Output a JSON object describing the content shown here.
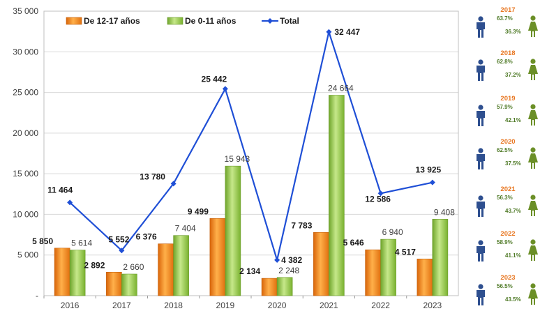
{
  "chart_data": {
    "type": "bar",
    "categories": [
      "2016",
      "2017",
      "2018",
      "2019",
      "2020",
      "2021",
      "2022",
      "2023"
    ],
    "series": [
      {
        "name": "De 12-17 años",
        "kind": "bar",
        "color": "#f28c1e",
        "values": [
          5850,
          2892,
          6376,
          9499,
          2134,
          7783,
          5646,
          4517
        ],
        "labels": [
          "5 850",
          "2 892",
          "6 376",
          "9 499",
          "2 134",
          "7 783",
          "5 646",
          "4 517"
        ]
      },
      {
        "name": "De 0-11 años",
        "kind": "bar",
        "color": "#8cc63f",
        "values": [
          5614,
          2660,
          7404,
          15943,
          2248,
          24664,
          6940,
          9408
        ],
        "labels": [
          "5 614",
          "2 660",
          "7 404",
          "15 943",
          "2 248",
          "24 664",
          "6 940",
          "9 408"
        ]
      },
      {
        "name": "Total",
        "kind": "line",
        "color": "#1f4fd6",
        "values": [
          11464,
          5552,
          13780,
          25442,
          4382,
          32447,
          12586,
          13925
        ],
        "labels": [
          "11 464",
          "5 552",
          "13 780",
          "25 442",
          "4 382",
          "32 447",
          "12 586",
          "13 925"
        ]
      }
    ],
    "ylim": [
      0,
      35000
    ],
    "yticks": [
      0,
      5000,
      10000,
      15000,
      20000,
      25000,
      30000,
      35000
    ],
    "ytick_labels": [
      "-",
      "5 000",
      "10 000",
      "15 000",
      "20 000",
      "25 000",
      "30 000",
      "35 000"
    ],
    "grid": true,
    "legend": "top-left"
  },
  "sidebar": {
    "male_color": "#2e4f8f",
    "female_color": "#6b8f27",
    "male_icon": "male-person-icon",
    "female_icon": "female-person-icon",
    "years": [
      {
        "year": "2017",
        "male": "63.7%",
        "female": "36.3%"
      },
      {
        "year": "2018",
        "male": "62.8%",
        "female": "37.2%"
      },
      {
        "year": "2019",
        "male": "57.9%",
        "female": "42.1%"
      },
      {
        "year": "2020",
        "male": "62.5%",
        "female": "37.5%"
      },
      {
        "year": "2021",
        "male": "56.3%",
        "female": "43.7%"
      },
      {
        "year": "2022",
        "male": "58.9%",
        "female": "41.1%"
      },
      {
        "year": "2023",
        "male": "56.5%",
        "female": "43.5%"
      }
    ]
  }
}
